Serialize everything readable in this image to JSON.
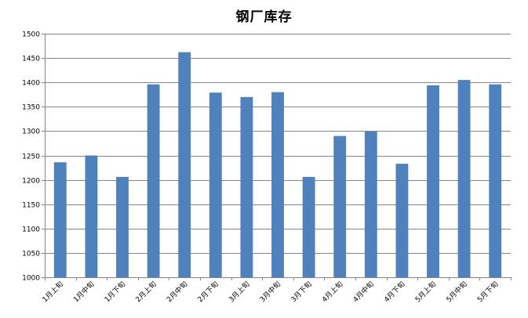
{
  "chart_data": {
    "type": "bar",
    "title": "钢厂库存",
    "xlabel": "",
    "ylabel": "",
    "categories": [
      "1月上旬",
      "1月中旬",
      "1月下旬",
      "2月上旬",
      "2月中旬",
      "2月下旬",
      "3月上旬",
      "3月中旬",
      "3月下旬",
      "4月上旬",
      "4月中旬",
      "4月下旬",
      "5月上旬",
      "5月中旬",
      "5月下旬"
    ],
    "values": [
      1236,
      1250,
      1206,
      1396,
      1462,
      1379,
      1370,
      1380,
      1206,
      1290,
      1299,
      1233,
      1394,
      1405,
      1396
    ],
    "ylim": [
      1000,
      1500
    ],
    "yticks": [
      1000,
      1050,
      1100,
      1150,
      1200,
      1250,
      1300,
      1350,
      1400,
      1450,
      1500
    ],
    "grid": true,
    "legend": "none",
    "bar_color": "#4f81bd",
    "grid_color": "#868686"
  }
}
